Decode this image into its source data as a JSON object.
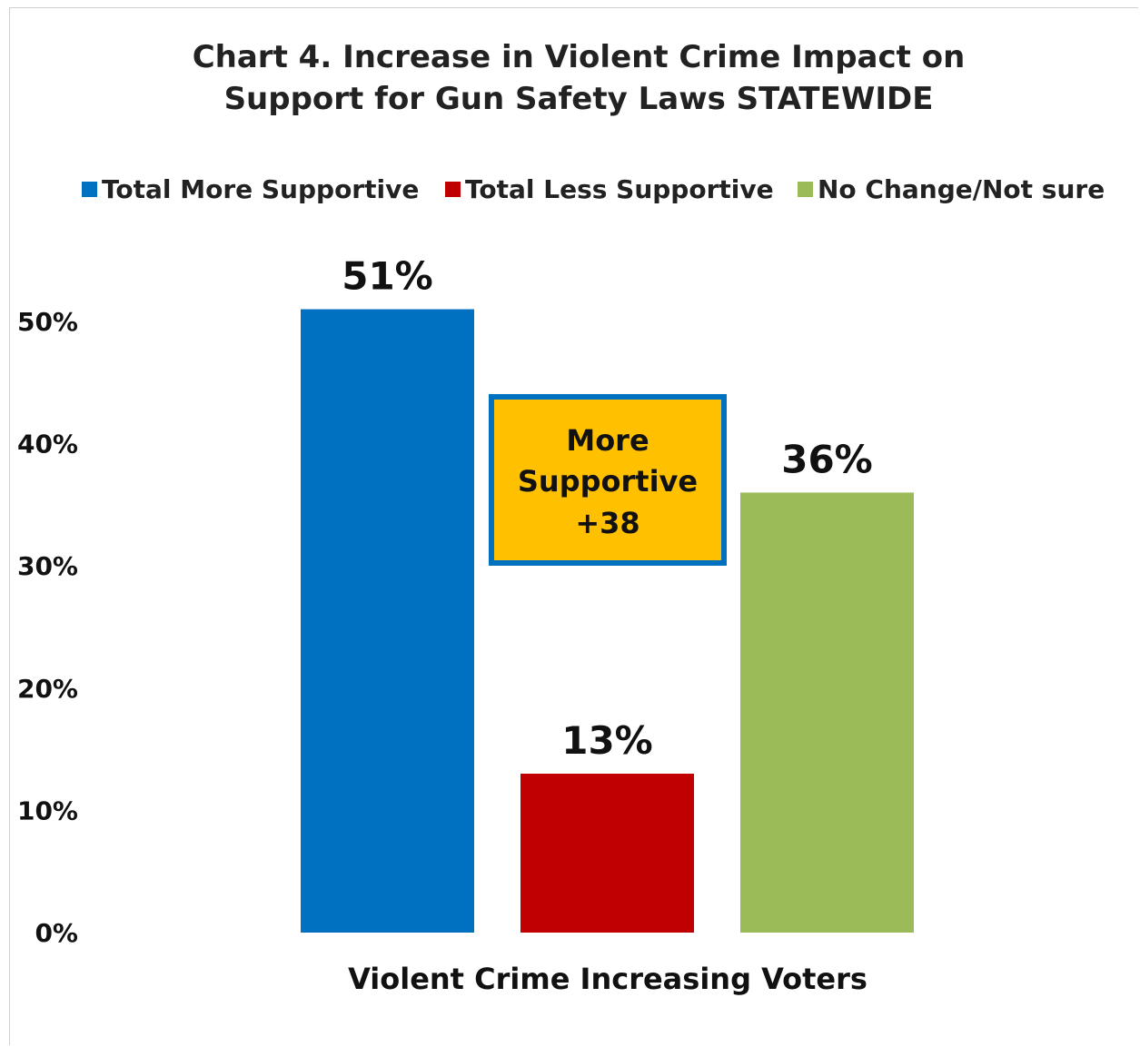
{
  "chart_data": {
    "type": "bar",
    "title": [
      "Chart 4. Increase in Violent Crime Impact on",
      "Support for Gun Safety Laws STATEWIDE"
    ],
    "categories": [
      "Violent Crime Increasing Voters"
    ],
    "series": [
      {
        "name": "Total More Supportive",
        "values": [
          51
        ],
        "color": "#0070c0",
        "label": "51%"
      },
      {
        "name": "Total Less Supportive",
        "values": [
          13
        ],
        "color": "#c00000",
        "label": "13%"
      },
      {
        "name": "No Change/Not sure",
        "values": [
          36
        ],
        "color": "#9bbb59",
        "label": "36%"
      }
    ],
    "ylim": [
      0,
      50
    ],
    "yticks": [
      "0%",
      "10%",
      "20%",
      "30%",
      "40%",
      "50%"
    ],
    "xlabel": "Violent Crime Increasing Voters",
    "ylabel": "",
    "legend_position": "top",
    "grid": false,
    "annotation": {
      "lines": [
        "More",
        "Supportive",
        "+38"
      ],
      "fill": "#ffc000",
      "border": "#0070c0"
    }
  }
}
